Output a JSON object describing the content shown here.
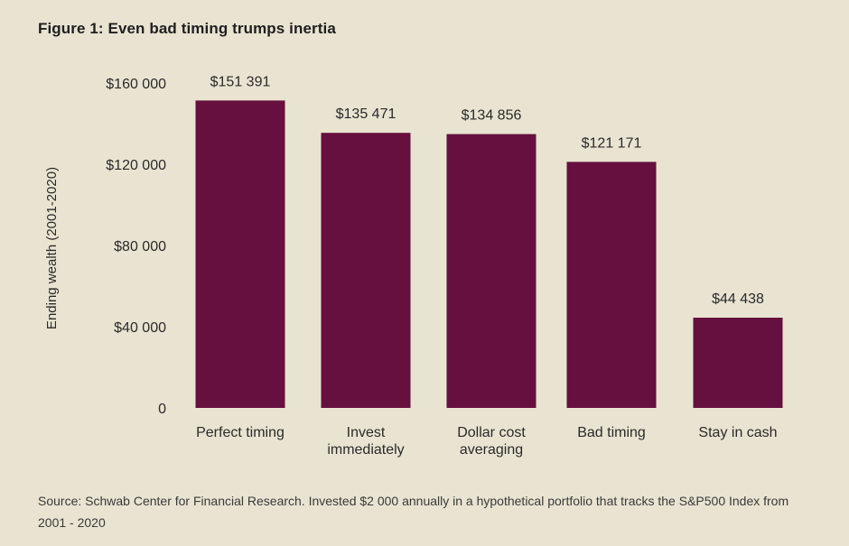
{
  "title": "Figure 1: Even bad timing trumps inertia",
  "source": "Source: Schwab Center for Financial Research. Invested $2 000 annually in a hypothetical portfolio that tracks the S&P500 Index from 2001 - 2020",
  "colors": {
    "background": "#e8e4d1",
    "bar": "#65103e",
    "text": "#2a2a2a"
  },
  "chart_data": {
    "type": "bar",
    "title": "Figure 1: Even bad timing trumps inertia",
    "xlabel": "",
    "ylabel": "Ending wealth (2001-2020)",
    "categories": [
      [
        "Perfect timing"
      ],
      [
        "Invest",
        "immediately"
      ],
      [
        "Dollar cost",
        "averaging"
      ],
      [
        "Bad timing"
      ],
      [
        "Stay in cash"
      ]
    ],
    "values": [
      151391,
      135471,
      134856,
      121171,
      44438
    ],
    "value_labels": [
      "$151 391",
      "$135 471",
      "$134 856",
      "$121 171",
      "$44 438"
    ],
    "ylim": [
      0,
      160000
    ],
    "yticks": [
      0,
      40000,
      80000,
      120000,
      160000
    ],
    "ytick_labels": [
      "0",
      "$40 000",
      "$80 000",
      "$120 000",
      "$160 000"
    ],
    "grid": false,
    "legend": "none"
  }
}
